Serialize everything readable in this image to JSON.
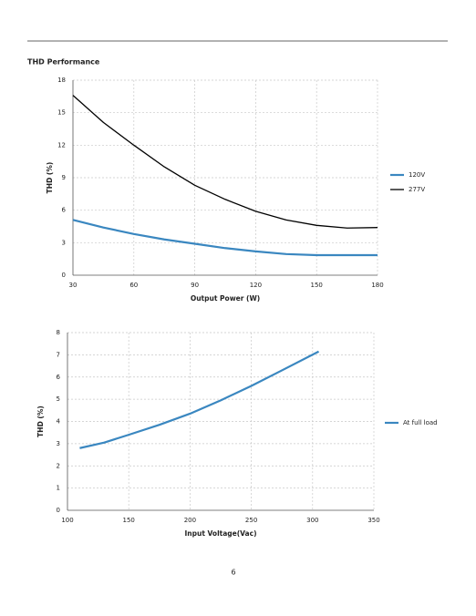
{
  "heading": "THD Performance",
  "page_number": "6",
  "chart_data": [
    {
      "type": "line",
      "xlabel": "Output Power (W)",
      "ylabel": "THD (%)",
      "x": [
        30,
        45,
        60,
        75,
        90,
        105,
        120,
        135,
        150,
        165,
        180
      ],
      "xlim": [
        30,
        180
      ],
      "xticks": [
        30,
        60,
        90,
        120,
        150,
        180
      ],
      "ylim": [
        0,
        18
      ],
      "yticks": [
        0,
        3,
        6,
        9,
        12,
        15,
        18
      ],
      "grid": true,
      "legend": "right",
      "series": [
        {
          "name": "120V",
          "color": "#3a87c0",
          "values": [
            5.1,
            4.4,
            3.8,
            3.3,
            2.9,
            2.5,
            2.2,
            1.95,
            1.85,
            1.85,
            1.85
          ]
        },
        {
          "name": "277V",
          "color": "#000000",
          "values": [
            16.6,
            14.1,
            12.0,
            10.0,
            8.3,
            7.0,
            5.9,
            5.1,
            4.6,
            4.35,
            4.4
          ]
        }
      ]
    },
    {
      "type": "line",
      "xlabel": "Input Voltage(Vac)",
      "ylabel": "THD (%)",
      "x": [
        110,
        130,
        150,
        175,
        200,
        225,
        250,
        275,
        305
      ],
      "xlim": [
        100,
        350
      ],
      "xticks": [
        100,
        150,
        200,
        250,
        300,
        350
      ],
      "ylim": [
        0,
        8
      ],
      "yticks": [
        0,
        1,
        2,
        3,
        4,
        5,
        6,
        7,
        8
      ],
      "grid": true,
      "legend": "right",
      "series": [
        {
          "name": "At full load",
          "color": "#3a87c0",
          "values": [
            2.8,
            3.05,
            3.4,
            3.85,
            4.35,
            4.95,
            5.6,
            6.3,
            7.15
          ]
        }
      ]
    }
  ]
}
